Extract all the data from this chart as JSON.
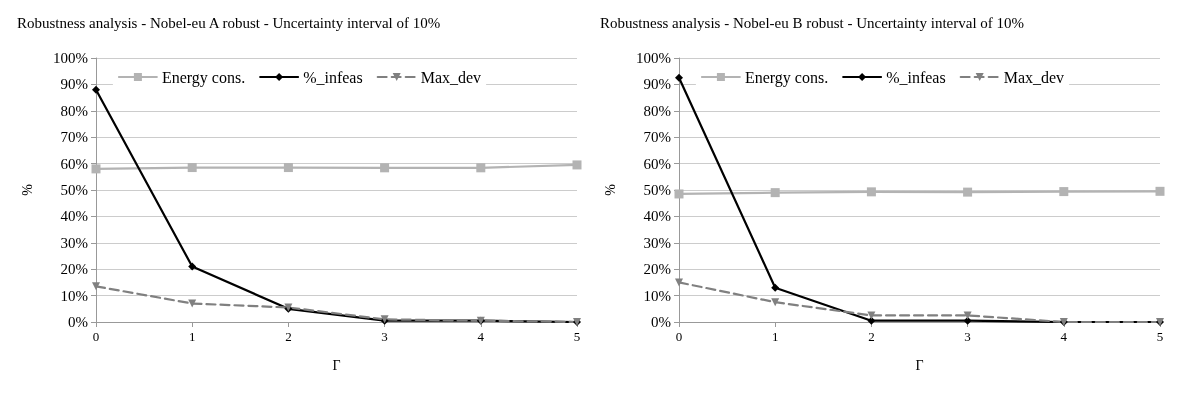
{
  "chart_data": [
    {
      "type": "line",
      "title": "Robustness analysis - Nobel-eu A robust - Uncertainty interval of 10%",
      "xlabel": "Γ",
      "ylabel": "%",
      "categories": [
        "0",
        "1",
        "2",
        "3",
        "4",
        "5"
      ],
      "ylim": [
        0,
        100
      ],
      "yticks": [
        {
          "value": 0,
          "label": "0%"
        },
        {
          "value": 10,
          "label": "10%"
        },
        {
          "value": 20,
          "label": "20%"
        },
        {
          "value": 30,
          "label": "30%"
        },
        {
          "value": 40,
          "label": "40%"
        },
        {
          "value": 50,
          "label": "50%"
        },
        {
          "value": 60,
          "label": "60%"
        },
        {
          "value": 70,
          "label": "70%"
        },
        {
          "value": 80,
          "label": "80%"
        },
        {
          "value": 90,
          "label": "90%"
        },
        {
          "value": 100,
          "label": "100%"
        }
      ],
      "grid": "y",
      "legend": "top",
      "series": [
        {
          "name": "Energy cons.",
          "color": "#b3b3b3",
          "marker": "square",
          "line_style": "solid",
          "values": [
            58,
            58.5,
            58.5,
            58.4,
            58.4,
            59.5
          ]
        },
        {
          "name": "%_infeas",
          "color": "#000000",
          "marker": "diamond",
          "line_style": "solid",
          "values": [
            88,
            21,
            5,
            0.5,
            0.5,
            0
          ]
        },
        {
          "name": "Max_dev",
          "color": "#808080",
          "marker": "triangle",
          "line_style": "dashed",
          "values": [
            13.5,
            7,
            5.5,
            1,
            0.5,
            0
          ]
        }
      ]
    },
    {
      "type": "line",
      "title": "Robustness analysis - Nobel-eu B robust - Uncertainty interval of 10%",
      "xlabel": "Γ",
      "ylabel": "%",
      "categories": [
        "0",
        "1",
        "2",
        "3",
        "4",
        "5"
      ],
      "ylim": [
        0,
        100
      ],
      "yticks": [
        {
          "value": 0,
          "label": "0%"
        },
        {
          "value": 10,
          "label": "10%"
        },
        {
          "value": 20,
          "label": "20%"
        },
        {
          "value": 30,
          "label": "30%"
        },
        {
          "value": 40,
          "label": "40%"
        },
        {
          "value": 50,
          "label": "50%"
        },
        {
          "value": 60,
          "label": "60%"
        },
        {
          "value": 70,
          "label": "70%"
        },
        {
          "value": 80,
          "label": "80%"
        },
        {
          "value": 90,
          "label": "90%"
        },
        {
          "value": 100,
          "label": "100%"
        }
      ],
      "grid": "y",
      "legend": "top",
      "series": [
        {
          "name": "Energy cons.",
          "color": "#b3b3b3",
          "marker": "square",
          "line_style": "solid",
          "values": [
            48.5,
            49,
            49.3,
            49.2,
            49.4,
            49.5
          ]
        },
        {
          "name": "%_infeas",
          "color": "#000000",
          "marker": "diamond",
          "line_style": "solid",
          "values": [
            92.5,
            13,
            0.5,
            0.5,
            0,
            0
          ]
        },
        {
          "name": "Max_dev",
          "color": "#808080",
          "marker": "triangle",
          "line_style": "dashed",
          "values": [
            15,
            7.5,
            2.5,
            2.5,
            0,
            0
          ]
        }
      ]
    }
  ]
}
